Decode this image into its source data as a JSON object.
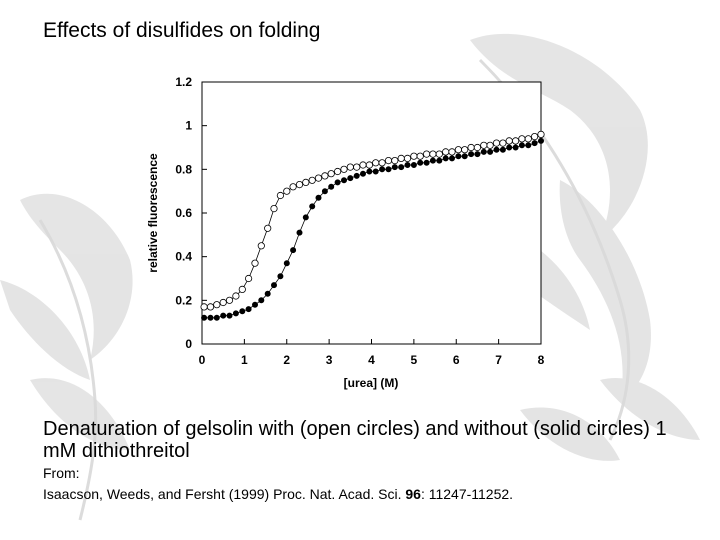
{
  "slide": {
    "title": "Effects of disulfides on folding",
    "caption": "Denaturation of gelsolin with (open circles) and without (solid circles) 1 mM dithiothreitol",
    "from_label": "From:",
    "citation_prefix": "Isaacson, Weeds, and Fersht (1999) Proc. Nat. Acad. Sci. ",
    "citation_volume": "96",
    "citation_suffix": ": 11247-11252."
  },
  "chart_data": {
    "type": "scatter",
    "xlabel": "[urea] (M)",
    "ylabel": "relative fluorescence",
    "xlim": [
      0,
      8
    ],
    "ylim": [
      0,
      1.2
    ],
    "xticks": [
      "0",
      "1",
      "2",
      "3",
      "4",
      "5",
      "6",
      "7",
      "8"
    ],
    "yticks": [
      "0",
      "0.2",
      "0.4",
      "0.6",
      "0.8",
      "1",
      "1.2"
    ],
    "grid": false,
    "series": [
      {
        "name": "open circles",
        "marker": "open",
        "x": [
          0.05,
          0.2,
          0.35,
          0.5,
          0.65,
          0.8,
          0.95,
          1.1,
          1.25,
          1.4,
          1.55,
          1.7,
          1.85,
          2.0,
          2.15,
          2.3,
          2.45,
          2.6,
          2.75,
          2.9,
          3.05,
          3.2,
          3.35,
          3.5,
          3.65,
          3.8,
          3.95,
          4.1,
          4.25,
          4.4,
          4.55,
          4.7,
          4.85,
          5.0,
          5.15,
          5.3,
          5.45,
          5.6,
          5.75,
          5.9,
          6.05,
          6.2,
          6.35,
          6.5,
          6.65,
          6.8,
          6.95,
          7.1,
          7.25,
          7.4,
          7.55,
          7.7,
          7.85,
          8.0
        ],
        "y": [
          0.17,
          0.17,
          0.18,
          0.19,
          0.2,
          0.22,
          0.25,
          0.3,
          0.37,
          0.45,
          0.53,
          0.62,
          0.68,
          0.7,
          0.72,
          0.73,
          0.74,
          0.75,
          0.76,
          0.77,
          0.78,
          0.79,
          0.8,
          0.81,
          0.81,
          0.82,
          0.82,
          0.83,
          0.83,
          0.84,
          0.84,
          0.85,
          0.85,
          0.86,
          0.86,
          0.87,
          0.87,
          0.87,
          0.88,
          0.88,
          0.89,
          0.89,
          0.9,
          0.9,
          0.91,
          0.91,
          0.92,
          0.92,
          0.93,
          0.93,
          0.94,
          0.94,
          0.95,
          0.96
        ]
      },
      {
        "name": "solid circles",
        "marker": "solid",
        "x": [
          0.05,
          0.2,
          0.35,
          0.5,
          0.65,
          0.8,
          0.95,
          1.1,
          1.25,
          1.4,
          1.55,
          1.7,
          1.85,
          2.0,
          2.15,
          2.3,
          2.45,
          2.6,
          2.75,
          2.9,
          3.05,
          3.2,
          3.35,
          3.5,
          3.65,
          3.8,
          3.95,
          4.1,
          4.25,
          4.4,
          4.55,
          4.7,
          4.85,
          5.0,
          5.15,
          5.3,
          5.45,
          5.6,
          5.75,
          5.9,
          6.05,
          6.2,
          6.35,
          6.5,
          6.65,
          6.8,
          6.95,
          7.1,
          7.25,
          7.4,
          7.55,
          7.7,
          7.85,
          8.0
        ],
        "y": [
          0.12,
          0.12,
          0.12,
          0.13,
          0.13,
          0.14,
          0.15,
          0.16,
          0.18,
          0.2,
          0.23,
          0.27,
          0.31,
          0.37,
          0.43,
          0.51,
          0.58,
          0.63,
          0.67,
          0.7,
          0.72,
          0.74,
          0.75,
          0.76,
          0.77,
          0.78,
          0.79,
          0.79,
          0.8,
          0.8,
          0.81,
          0.81,
          0.82,
          0.82,
          0.83,
          0.83,
          0.84,
          0.84,
          0.85,
          0.85,
          0.86,
          0.86,
          0.87,
          0.87,
          0.88,
          0.88,
          0.89,
          0.89,
          0.9,
          0.9,
          0.91,
          0.91,
          0.92,
          0.93
        ]
      }
    ]
  }
}
